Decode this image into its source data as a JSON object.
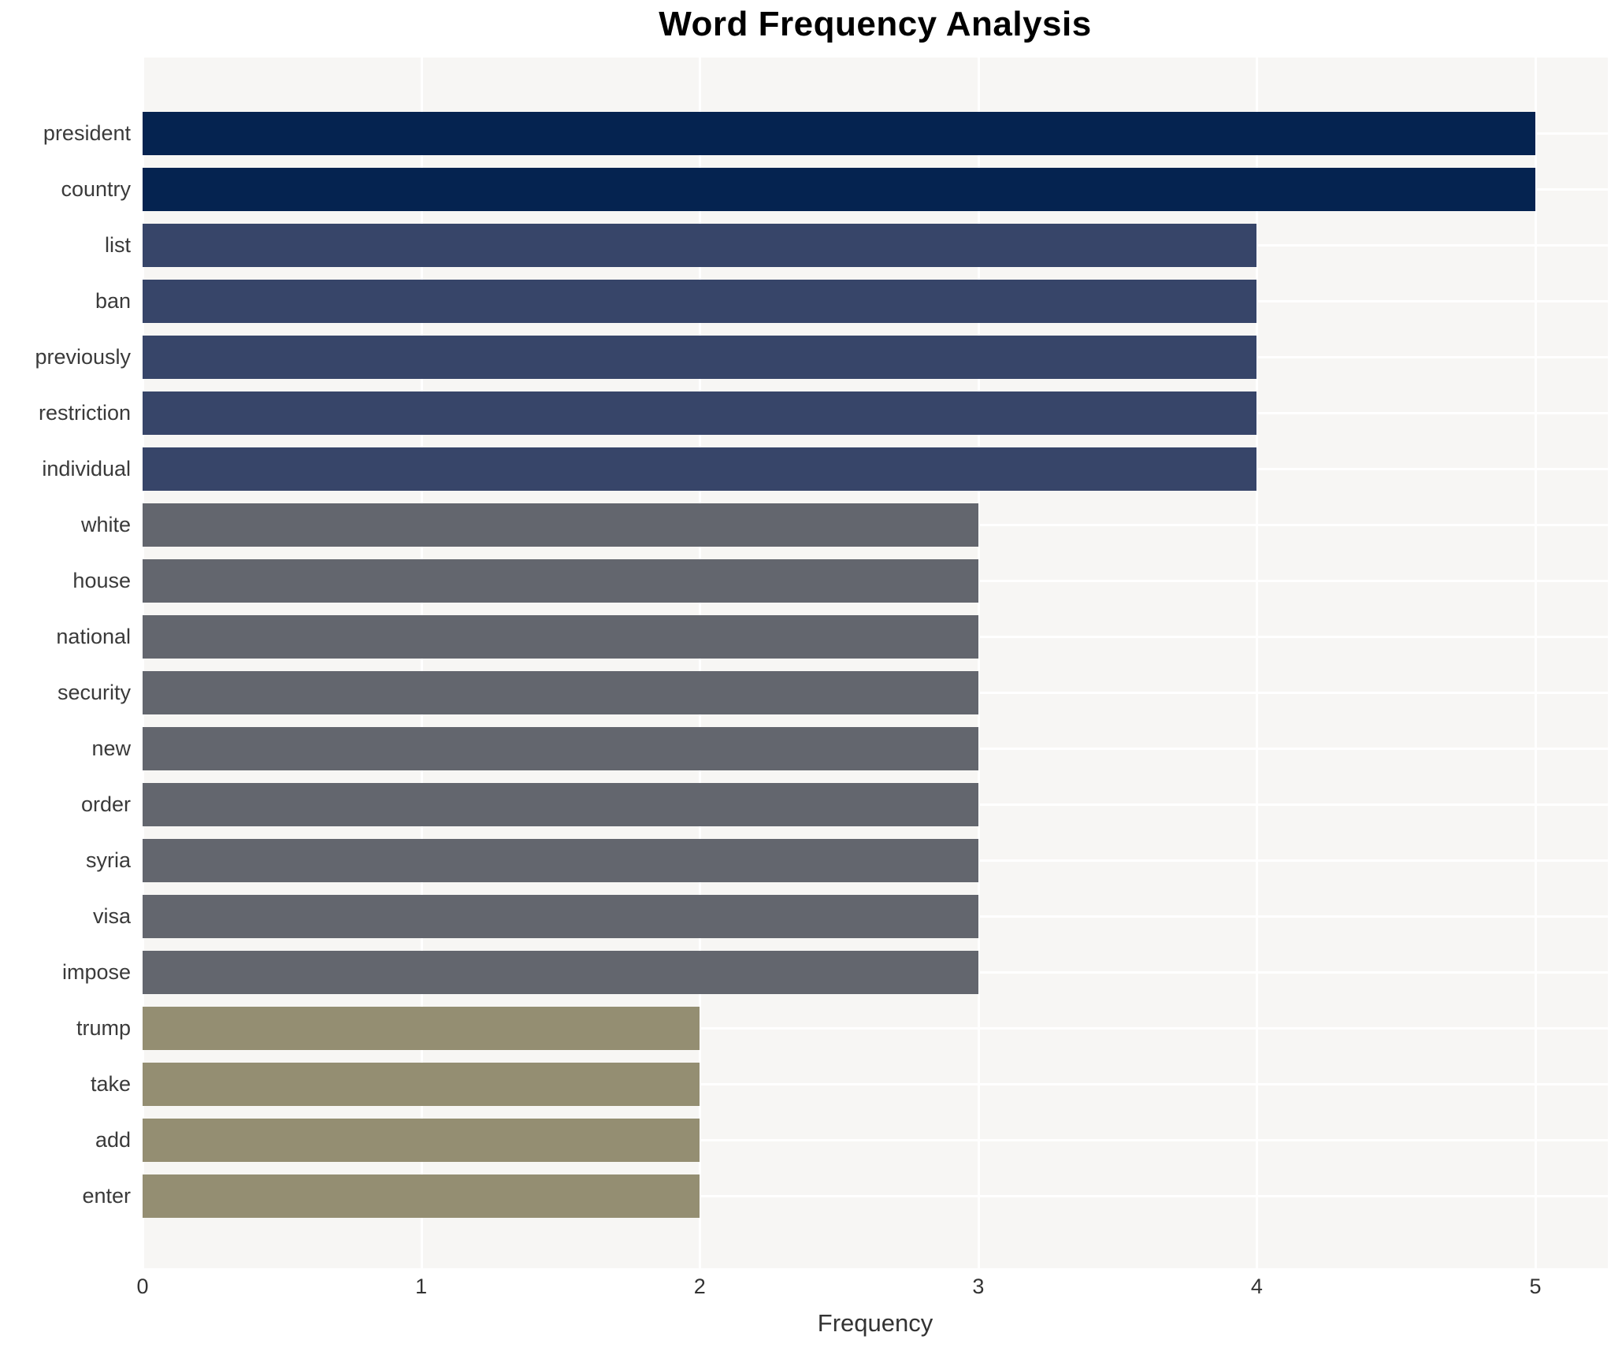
{
  "title": "Word Frequency Analysis",
  "chart_data": {
    "type": "bar",
    "orientation": "horizontal",
    "title": "Word Frequency Analysis",
    "xlabel": "Frequency",
    "xlim": [
      0,
      5.26
    ],
    "xticks": [
      0,
      1,
      2,
      3,
      4,
      5
    ],
    "grid": true,
    "legend": false,
    "categories": [
      "president",
      "country",
      "list",
      "ban",
      "previously",
      "restriction",
      "individual",
      "white",
      "house",
      "national",
      "security",
      "new",
      "order",
      "syria",
      "visa",
      "impose",
      "trump",
      "take",
      "add",
      "enter"
    ],
    "values": [
      5,
      5,
      4,
      4,
      4,
      4,
      4,
      3,
      3,
      3,
      3,
      3,
      3,
      3,
      3,
      3,
      2,
      2,
      2,
      2
    ],
    "bar_colors_by_value": {
      "5": "#052350",
      "4": "#374569",
      "3": "#63666e",
      "2": "#948e72"
    },
    "plot_bg_color": "#f7f6f4",
    "gridline_color": "#ffffff",
    "label_color": "#3a3a3a",
    "tick_color": "#333333",
    "title_color": "#000000"
  }
}
